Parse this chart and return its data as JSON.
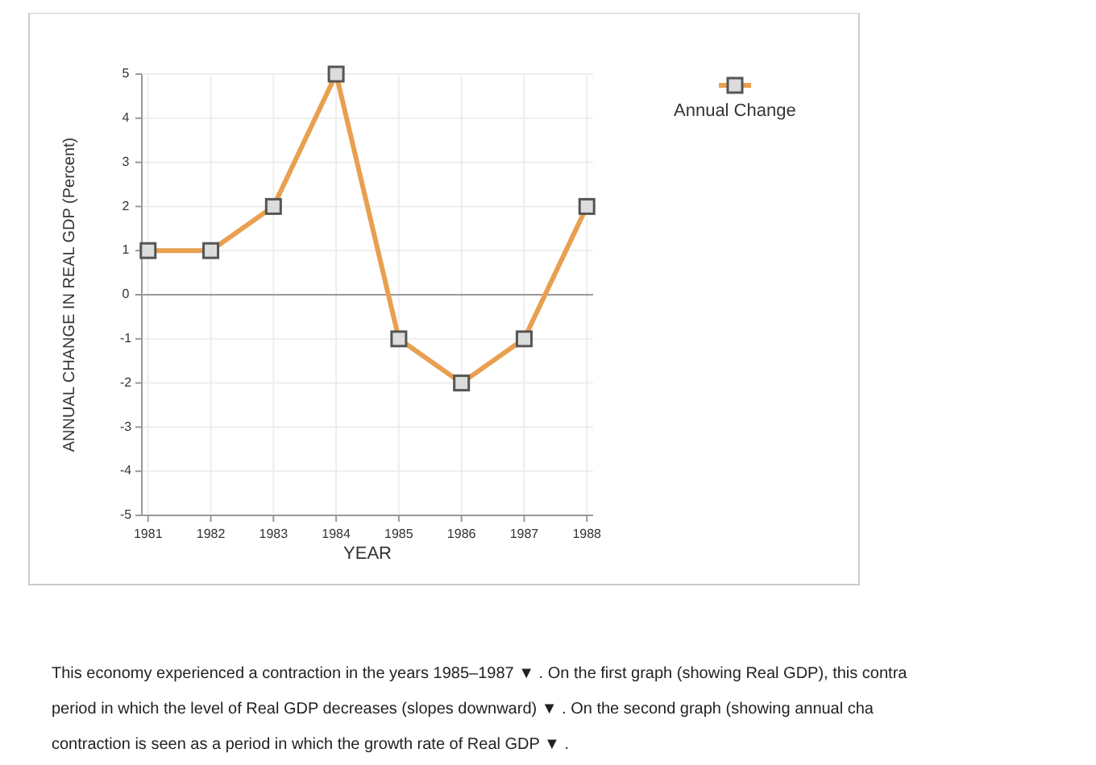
{
  "chart_data": {
    "type": "line",
    "xlabel": "YEAR",
    "ylabel": "ANNUAL CHANGE IN REAL GDP (Percent)",
    "x": [
      1981,
      1982,
      1983,
      1984,
      1985,
      1986,
      1987,
      1988
    ],
    "series": [
      {
        "name": "Annual Change",
        "color": "#e8a050",
        "values": [
          1,
          1,
          2,
          5,
          -1,
          -2,
          -1,
          2
        ]
      }
    ],
    "xlim": [
      1980.9,
      1988.1
    ],
    "xticks": [
      1981,
      1982,
      1983,
      1984,
      1985,
      1986,
      1987,
      1988
    ],
    "ylim": [
      -5,
      5
    ],
    "yticks": [
      -5,
      -4,
      -3,
      -2,
      -1,
      0,
      1,
      2,
      3,
      4,
      5
    ],
    "grid": true,
    "legend": "right",
    "marker": "square",
    "line_style": "solid",
    "annotations": [
      "This economy experienced a contraction in the years 1985–1987 ▼ . On the first graph (showing Real GDP), this contra",
      "period in which the level of Real GDP  decreases (slopes downward)  ▼ . On the second graph (showing annual cha",
      "contraction is seen as a period in which the growth rate of Real GDP  ▼ ."
    ]
  }
}
